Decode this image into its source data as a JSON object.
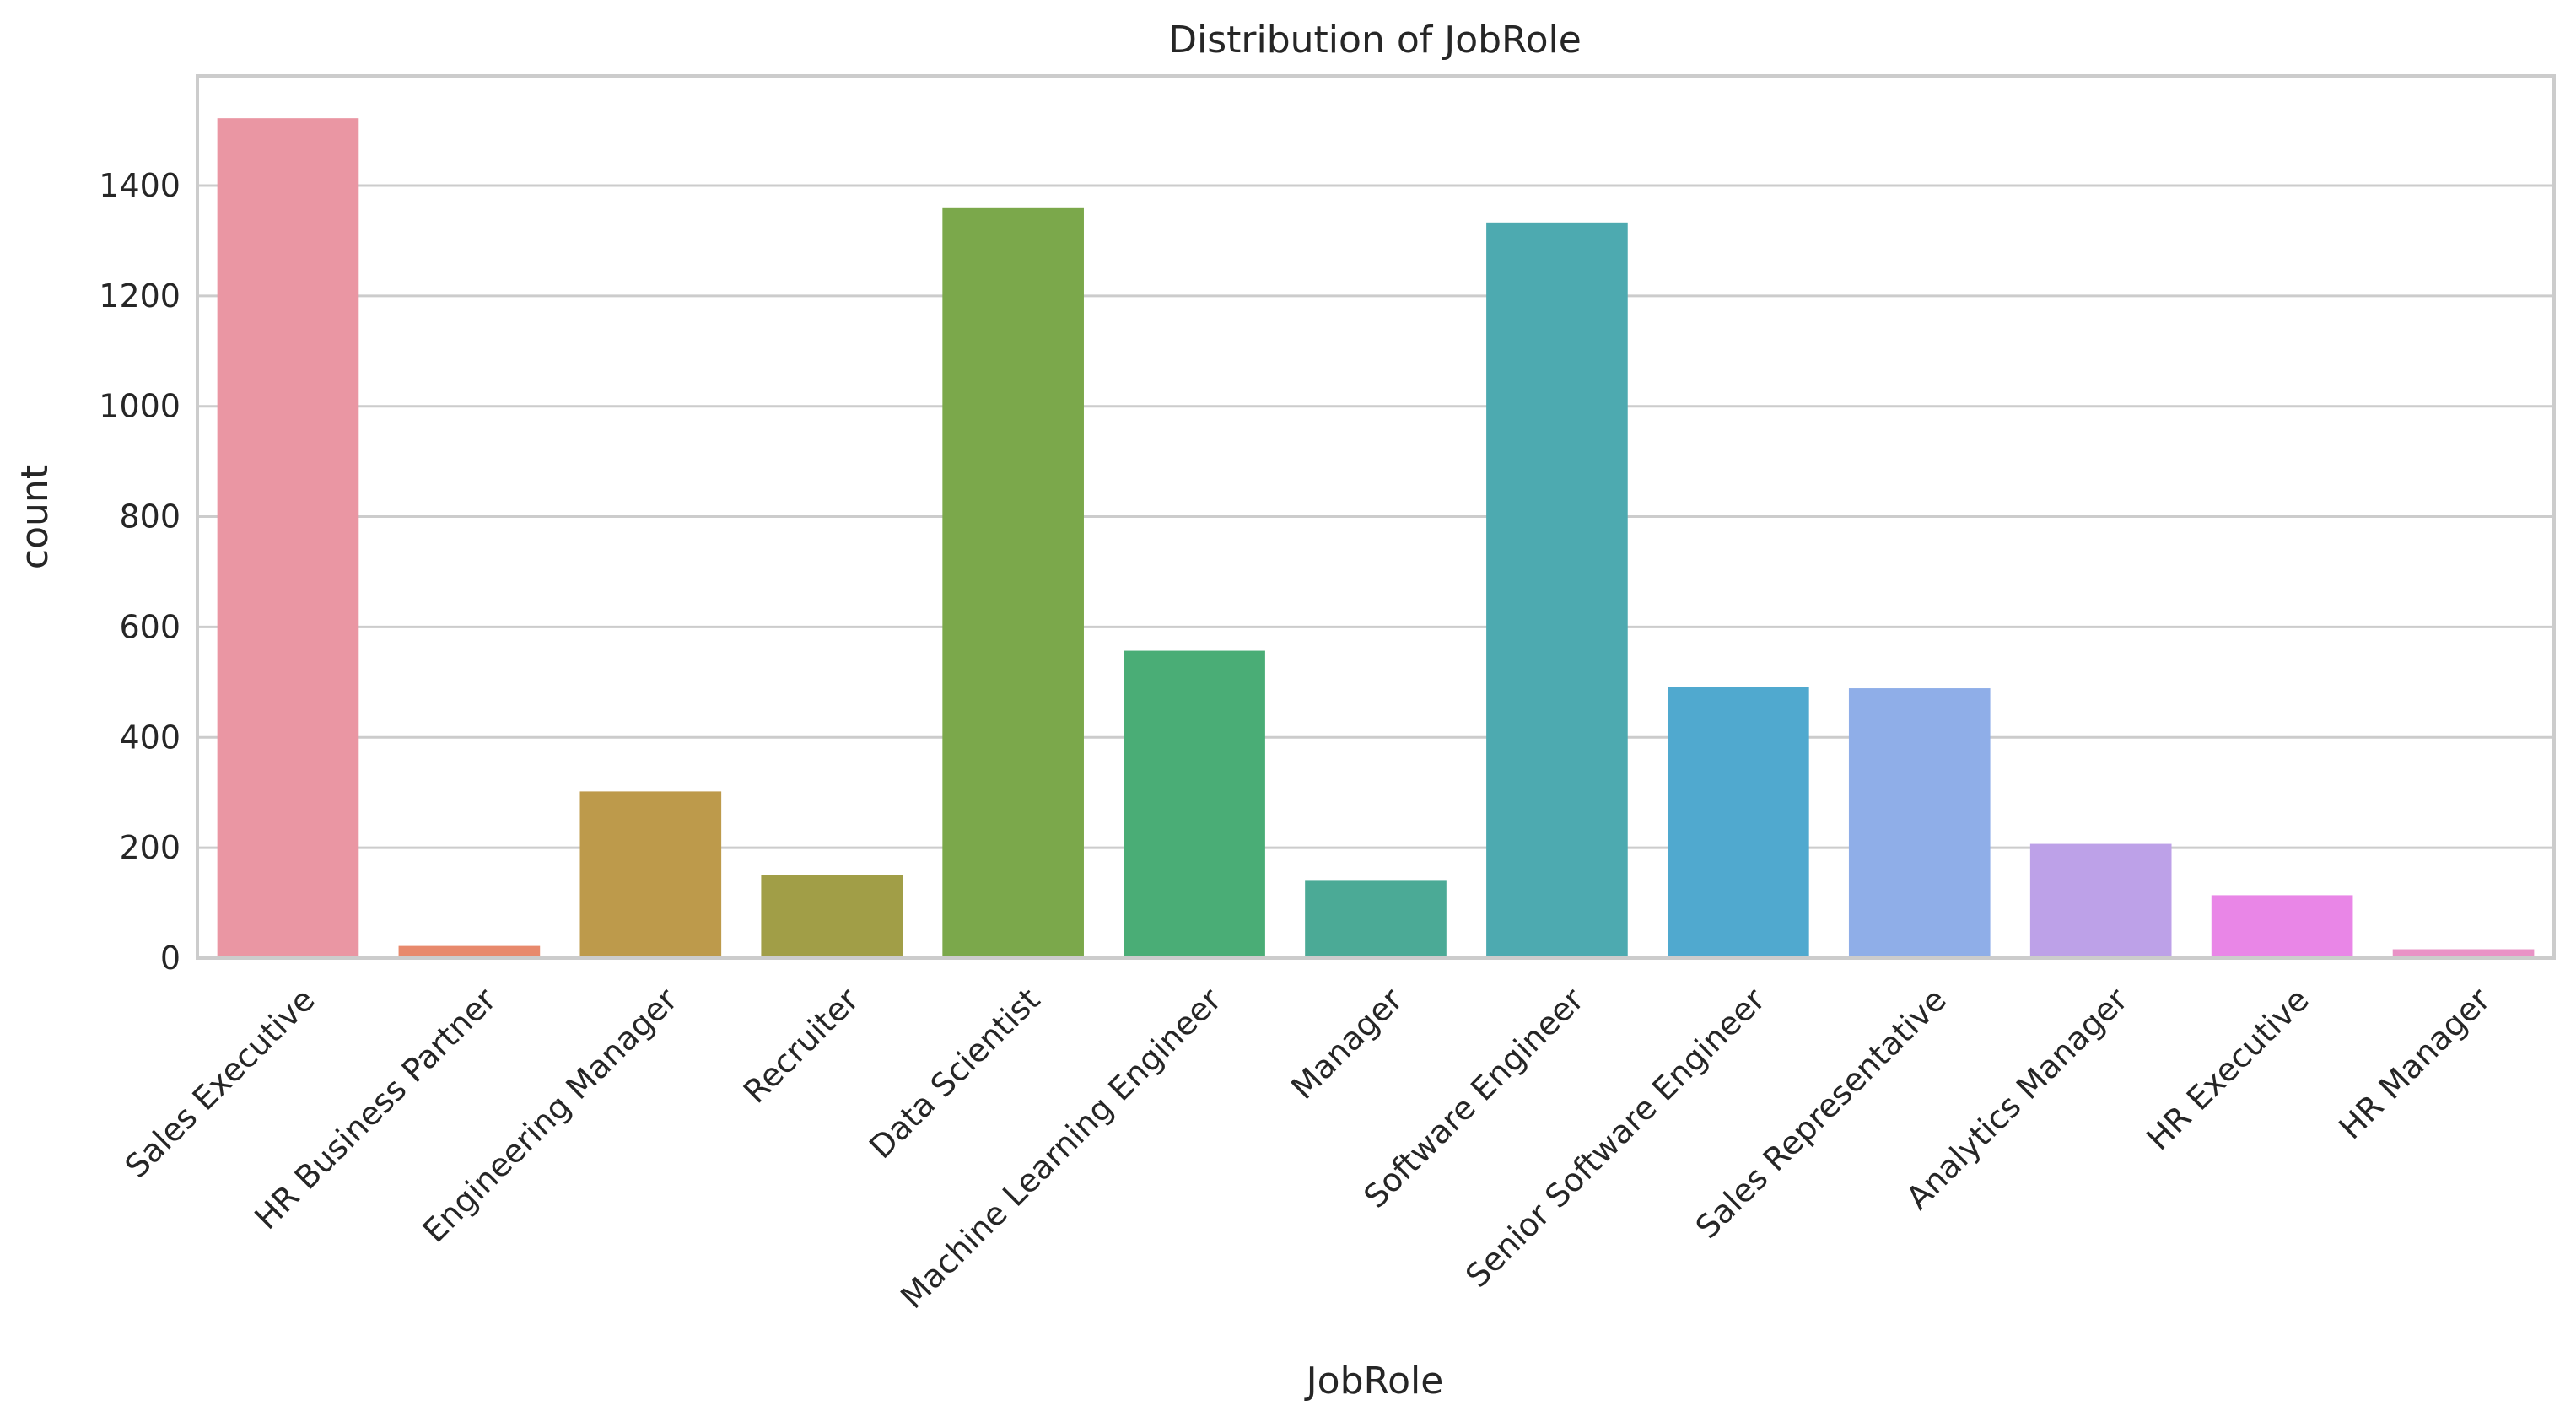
{
  "chart_data": {
    "type": "bar",
    "title": "Distribution of JobRole",
    "xlabel": "JobRole",
    "ylabel": "count",
    "ylim": [
      0,
      1600
    ],
    "yticks": [
      0,
      200,
      400,
      600,
      800,
      1000,
      1200,
      1400
    ],
    "grid": true,
    "categories": [
      "Sales Executive",
      "HR Business Partner",
      "Engineering Manager",
      "Recruiter",
      "Data Scientist",
      "Machine Learning Engineer",
      "Manager",
      "Software Engineer",
      "Senior Software Engineer",
      "Sales Representative",
      "Analytics Manager",
      "HR Executive",
      "HR Manager"
    ],
    "values": [
      1522,
      22,
      302,
      150,
      1359,
      557,
      140,
      1333,
      492,
      489,
      207,
      114,
      16
    ],
    "colors": [
      "#ea96a3",
      "#e8896c",
      "#bd9a4b",
      "#a19e47",
      "#7ba84b",
      "#4aad76",
      "#4baa96",
      "#4daab0",
      "#50a9cf",
      "#8faee8",
      "#bda1e8",
      "#e986e7",
      "#e992c6"
    ]
  }
}
